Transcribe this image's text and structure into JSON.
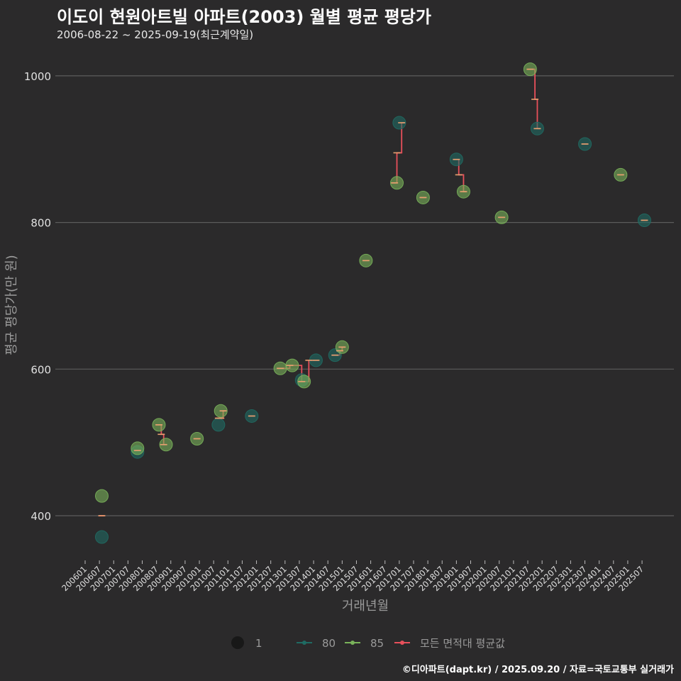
{
  "title": "이도이 현원아트빌 아파트(2003) 월별 평균 평당가",
  "subtitle": "2006-08-22 ~ 2025-09-19(최근계약일)",
  "credit": "©디아파트(dapt.kr) / 2025.09.20 / 자료=국토교통부 실거래가",
  "colors": {
    "bg": "#2b2a2b",
    "grid": "#5c5c5c",
    "s80": "#1f6b63",
    "s85": "#79b35a",
    "avg": "#e8505b"
  },
  "chart_data": {
    "type": "scatter",
    "xlabel": "거래년월",
    "ylabel": "평균 평당가(만 원)",
    "ylim": [
      340,
      1040
    ],
    "yticks": [
      400,
      600,
      800,
      1000
    ],
    "xticks": [
      "200601",
      "200607",
      "200701",
      "200707",
      "200801",
      "200807",
      "200901",
      "200907",
      "201001",
      "201007",
      "201101",
      "201107",
      "201201",
      "201207",
      "201301",
      "201307",
      "201401",
      "201407",
      "201501",
      "201507",
      "201601",
      "201607",
      "201701",
      "201707",
      "201801",
      "201807",
      "201901",
      "201907",
      "202001",
      "202007",
      "202101",
      "202107",
      "202201",
      "202207",
      "202301",
      "202307",
      "202401",
      "202407",
      "202501",
      "202507"
    ],
    "legend": {
      "position": "bottom",
      "size_label": "1",
      "items": [
        {
          "key": "s80",
          "label": "80"
        },
        {
          "key": "s85",
          "label": "85"
        },
        {
          "key": "avg",
          "label": "모든 면적대 평균값"
        }
      ]
    },
    "series": [
      {
        "name": "80",
        "key": "s80",
        "points": [
          [
            "2006-08",
            371
          ],
          [
            "2007-11",
            487
          ],
          [
            "2010-09",
            524
          ],
          [
            "2011-11",
            536
          ],
          [
            "2013-08",
            585
          ],
          [
            "2014-02",
            612
          ],
          [
            "2014-10",
            619
          ],
          [
            "2017-01",
            936
          ],
          [
            "2019-01",
            886
          ],
          [
            "2021-11",
            928
          ],
          [
            "2023-07",
            907
          ],
          [
            "2025-08",
            803
          ]
        ]
      },
      {
        "name": "85",
        "key": "s85",
        "points": [
          [
            "2006-08",
            427
          ],
          [
            "2007-11",
            492
          ],
          [
            "2008-08",
            524
          ],
          [
            "2008-11",
            497
          ],
          [
            "2009-12",
            505
          ],
          [
            "2010-10",
            543
          ],
          [
            "2012-11",
            601
          ],
          [
            "2013-04",
            605
          ],
          [
            "2013-09",
            583
          ],
          [
            "2015-01",
            630
          ],
          [
            "2015-11",
            748
          ],
          [
            "2016-12",
            854
          ],
          [
            "2017-11",
            834
          ],
          [
            "2019-04",
            842
          ],
          [
            "2020-08",
            807
          ],
          [
            "2021-08",
            1009
          ],
          [
            "2024-10",
            865
          ]
        ]
      }
    ],
    "avg_segments": [
      [
        [
          "2006-08",
          400
        ]
      ],
      [
        [
          "2007-11",
          489
        ]
      ],
      [
        [
          "2008-08",
          524
        ],
        [
          "2008-09",
          511
        ],
        [
          "2008-10",
          497
        ]
      ],
      [
        [
          "2009-12",
          505
        ]
      ],
      [
        [
          "2010-09",
          533
        ],
        [
          "2010-10",
          533
        ],
        [
          "2010-11",
          543
        ]
      ],
      [
        [
          "2011-11",
          536
        ]
      ],
      [
        [
          "2012-11",
          601
        ],
        [
          "2013-03",
          605
        ],
        [
          "2013-08",
          583
        ],
        [
          "2013-11",
          612
        ],
        [
          "2014-02",
          612
        ]
      ],
      [
        [
          "2014-10",
          619
        ],
        [
          "2014-12",
          625
        ],
        [
          "2015-01",
          630
        ]
      ],
      [
        [
          "2015-11",
          748
        ]
      ],
      [
        [
          "2016-11",
          854
        ],
        [
          "2016-12",
          895
        ],
        [
          "2017-02",
          936
        ]
      ],
      [
        [
          "2017-11",
          834
        ]
      ],
      [
        [
          "2019-01",
          886
        ],
        [
          "2019-02",
          865
        ],
        [
          "2019-04",
          842
        ]
      ],
      [
        [
          "2020-08",
          807
        ]
      ],
      [
        [
          "2021-08",
          1009
        ],
        [
          "2021-10",
          968
        ],
        [
          "2021-11",
          928
        ]
      ],
      [
        [
          "2023-07",
          907
        ]
      ],
      [
        [
          "2024-10",
          865
        ]
      ],
      [
        [
          "2025-08",
          803
        ]
      ]
    ]
  }
}
